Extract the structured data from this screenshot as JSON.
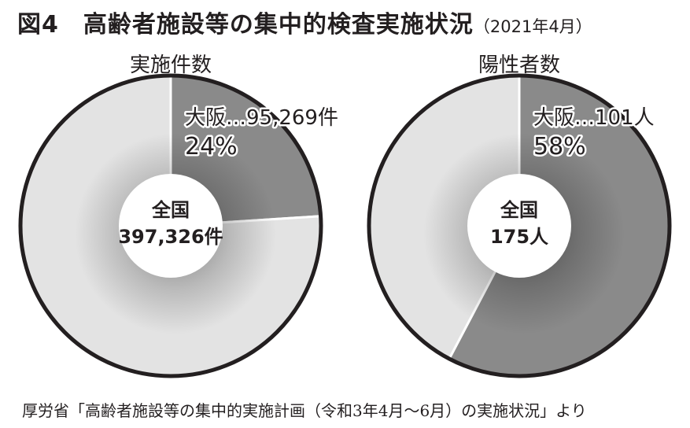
{
  "title": {
    "main": "図4　高齢者施設等の集中的検査実施状況",
    "sub": "（2021年4月）"
  },
  "source": "厚労省「高齢者施設等の集中的実施計画（令和3年4月〜6月）の実施状況」より",
  "colors": {
    "osaka_slice": "#8a8a8a",
    "rest_slice": "#e3e3e3",
    "outline": "#231f20",
    "center": "#ffffff"
  },
  "chart_data": [
    {
      "type": "pie",
      "title": "実施件数",
      "total_label": "全国",
      "total_value": "397,326件",
      "total": 397326,
      "slices": [
        {
          "label": "大阪…95,269件",
          "value": 95269,
          "percent_label": "24%"
        },
        {
          "value": 302057
        }
      ]
    },
    {
      "type": "pie",
      "title": "陽性者数",
      "total_label": "全国",
      "total_value": "175人",
      "total": 175,
      "slices": [
        {
          "label": "大阪…101人",
          "value": 101,
          "percent_label": "58%"
        },
        {
          "value": 74
        }
      ]
    }
  ]
}
